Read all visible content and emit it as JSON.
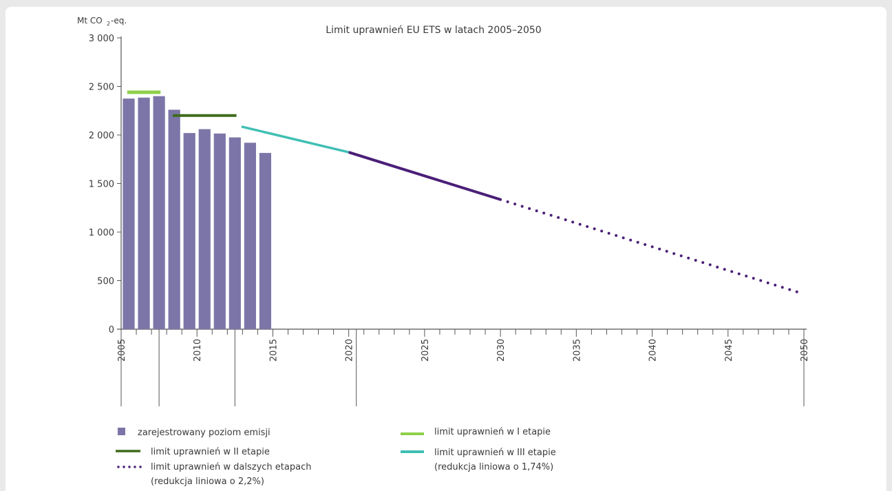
{
  "chart_data": {
    "type": "bar",
    "title": "Limit uprawnień EU ETS w latach 2005–2050",
    "ylabel_main": "Mt CO",
    "ylabel_sub": "2",
    "ylabel_suffix": "-eq.",
    "ylim": [
      0,
      3000
    ],
    "xlim": [
      2005,
      2050
    ],
    "y_ticks": [
      {
        "value": 0,
        "label": "0"
      },
      {
        "value": 500,
        "label": "500"
      },
      {
        "value": 1000,
        "label": "1 000"
      },
      {
        "value": 1500,
        "label": "1 500"
      },
      {
        "value": 2000,
        "label": "2 000"
      },
      {
        "value": 2500,
        "label": "2 500"
      },
      {
        "value": 3000,
        "label": "3 000"
      }
    ],
    "x_tick_labels": [
      "2005",
      "2010",
      "2015",
      "2020",
      "2025",
      "2030",
      "2035",
      "2040",
      "2045",
      "2050"
    ],
    "phase_dividers": [
      2008,
      2013,
      2021
    ],
    "emissions": {
      "years": [
        2005,
        2006,
        2007,
        2008,
        2009,
        2010,
        2011,
        2012,
        2013,
        2014
      ],
      "values": [
        2375,
        2385,
        2400,
        2260,
        2020,
        2060,
        2015,
        1975,
        1920,
        1815
      ],
      "color": "#7c76a8"
    },
    "phase1_cap": {
      "x": [
        2005.4,
        2007.6
      ],
      "value": 2440,
      "color": "#8fcf4a"
    },
    "phase2_cap": {
      "x": [
        2008.4,
        2012.6
      ],
      "value": 2200,
      "color": "#3f6b1c"
    },
    "phase3_cap": {
      "x": [
        2013,
        2020
      ],
      "values": [
        2084,
        1822
      ],
      "color": "#40bfb4"
    },
    "phase3b_cap": {
      "x": [
        2020,
        2030
      ],
      "values": [
        1822,
        1335
      ],
      "color": "#4a1f78"
    },
    "later_cap": {
      "x": [
        2030,
        2050
      ],
      "values": [
        1335,
        362
      ],
      "color": "#4a1f78"
    },
    "legend": [
      {
        "key": "emissions",
        "label": "zarejestrowany poziom emisji",
        "note": ""
      },
      {
        "key": "phase1",
        "label": "limit uprawnień w I etapie",
        "note": ""
      },
      {
        "key": "phase2",
        "label": "limit uprawnień w II etapie",
        "note": ""
      },
      {
        "key": "phase3",
        "label": "limit uprawnień w III etapie",
        "note": "(redukcja liniowa o 1,74%)"
      },
      {
        "key": "later",
        "label": "limit uprawnień w dalszych etapach",
        "note": "(redukcja liniowa o 2,2%)"
      }
    ]
  }
}
